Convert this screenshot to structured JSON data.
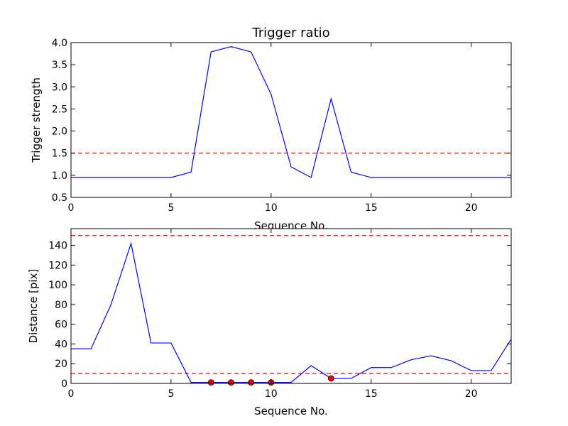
{
  "chart_data": [
    {
      "type": "line",
      "title": "Trigger ratio",
      "xlabel": "Sequence No.",
      "ylabel": "Trigger strength",
      "xlim": [
        0,
        22
      ],
      "ylim": [
        0.5,
        4.0
      ],
      "xticks": [
        0,
        5,
        10,
        15,
        20
      ],
      "yticks": [
        "0.5",
        "1.0",
        "1.5",
        "2.0",
        "2.5",
        "3.0",
        "3.5",
        "4.0"
      ],
      "series": [
        {
          "color": "#0000ff",
          "x": [
            0,
            1,
            2,
            3,
            4,
            5,
            6,
            7,
            8,
            9,
            10,
            11,
            12,
            13,
            14,
            15,
            16,
            17,
            18,
            19,
            20,
            21,
            22
          ],
          "y": [
            0.95,
            0.95,
            0.95,
            0.95,
            0.95,
            0.95,
            1.07,
            3.79,
            3.91,
            3.79,
            2.83,
            1.19,
            0.95,
            2.73,
            1.07,
            0.95,
            0.95,
            0.95,
            0.95,
            0.95,
            0.95,
            0.95,
            0.95
          ]
        }
      ],
      "hlines": [
        {
          "y": 1.5,
          "color": "#ff0000",
          "style": "dashed"
        }
      ]
    },
    {
      "type": "line",
      "title": "",
      "xlabel": "Sequence No.",
      "ylabel": "Distance [pix]",
      "xlim": [
        0,
        22
      ],
      "ylim": [
        0,
        157
      ],
      "xticks": [
        0,
        5,
        10,
        15,
        20
      ],
      "yticks": [
        "0",
        "20",
        "40",
        "60",
        "80",
        "100",
        "120",
        "140"
      ],
      "series": [
        {
          "color": "#0000ff",
          "x": [
            0,
            1,
            2,
            3,
            4,
            5,
            6,
            7,
            8,
            9,
            10,
            11,
            12,
            13,
            14,
            15,
            16,
            17,
            18,
            19,
            20,
            21,
            22
          ],
          "y": [
            35,
            35,
            80,
            142,
            41,
            41,
            1,
            1,
            1,
            1,
            1,
            1,
            18,
            5,
            5,
            16,
            16,
            24,
            28,
            23,
            13,
            13,
            45
          ]
        }
      ],
      "markers": {
        "color": "#ff0000",
        "x": [
          7,
          8,
          9,
          10,
          13
        ],
        "y": [
          1,
          1,
          1,
          1,
          5
        ]
      },
      "hlines": [
        {
          "y": 150,
          "color": "#ff0000",
          "style": "dashed"
        },
        {
          "y": 10,
          "color": "#ff0000",
          "style": "dashed"
        }
      ]
    }
  ]
}
